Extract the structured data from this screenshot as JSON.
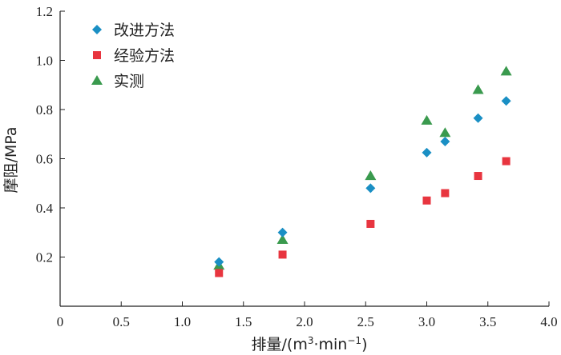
{
  "chart_data": {
    "type": "scatter",
    "title": "",
    "xlabel": {
      "prefix": "排量/(m",
      "sup1": "3",
      "middle": "·min",
      "sup2": "−1",
      "suffix": ")"
    },
    "ylabel": "摩阻/MPa",
    "xlim": [
      0,
      4.0
    ],
    "ylim": [
      0,
      1.2
    ],
    "x_ticks": [
      0,
      0.5,
      1.0,
      1.5,
      2.0,
      2.5,
      3.0,
      3.5,
      4.0
    ],
    "x_tick_labels": [
      "0",
      "0.5",
      "1.0",
      "1.5",
      "2.0",
      "2.5",
      "3.0",
      "3.5",
      "4.0"
    ],
    "y_ticks": [
      0.2,
      0.4,
      0.6,
      0.8,
      1.0,
      1.2
    ],
    "y_tick_labels": [
      "0.2",
      "0.4",
      "0.6",
      "0.8",
      "1.0",
      "1.2"
    ],
    "grid": false,
    "legend_position": "top-left",
    "series": [
      {
        "name": "改进方法",
        "marker": "diamond",
        "color": "#1a8fc4",
        "points": [
          [
            1.3,
            0.18
          ],
          [
            1.82,
            0.3
          ],
          [
            2.54,
            0.48
          ],
          [
            3.0,
            0.625
          ],
          [
            3.15,
            0.67
          ],
          [
            3.42,
            0.765
          ],
          [
            3.65,
            0.835
          ]
        ]
      },
      {
        "name": "经验方法",
        "marker": "square",
        "color": "#e8353f",
        "points": [
          [
            1.3,
            0.135
          ],
          [
            1.82,
            0.21
          ],
          [
            2.54,
            0.335
          ],
          [
            3.0,
            0.43
          ],
          [
            3.15,
            0.46
          ],
          [
            3.42,
            0.53
          ],
          [
            3.65,
            0.59
          ]
        ]
      },
      {
        "name": "实测",
        "marker": "triangle",
        "color": "#3a9a4e",
        "points": [
          [
            1.3,
            0.165
          ],
          [
            1.82,
            0.27
          ],
          [
            2.54,
            0.53
          ],
          [
            3.0,
            0.755
          ],
          [
            3.15,
            0.705
          ],
          [
            3.42,
            0.88
          ],
          [
            3.65,
            0.955
          ]
        ]
      }
    ]
  }
}
